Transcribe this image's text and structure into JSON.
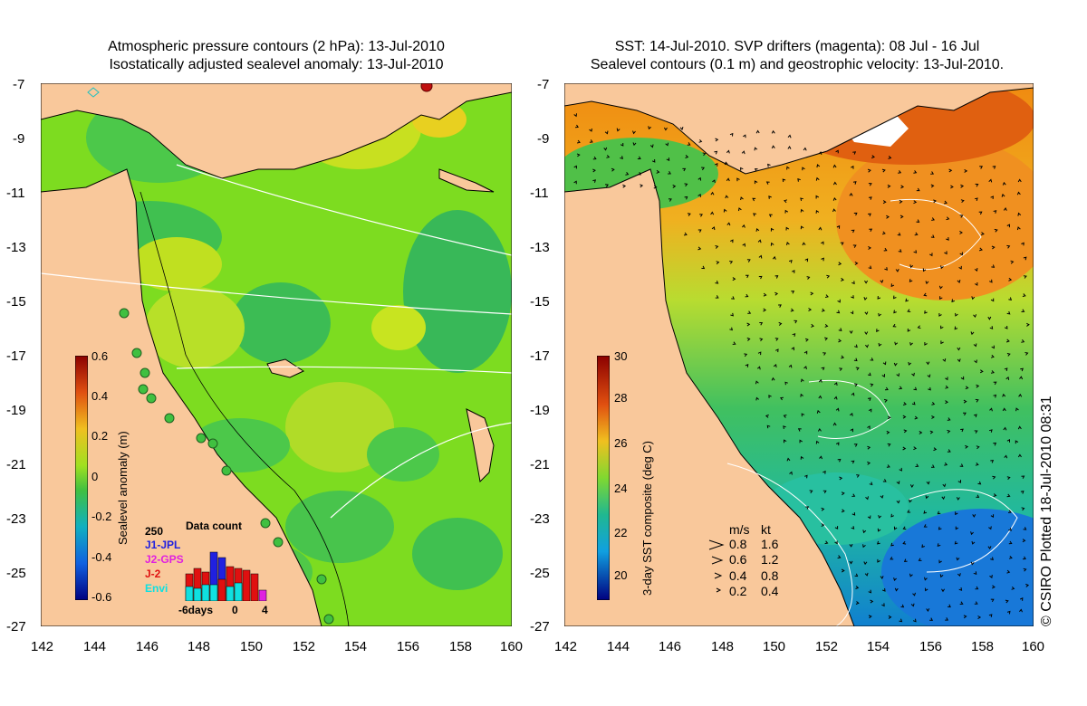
{
  "left_panel": {
    "title_line1": "Atmospheric pressure contours (2 hPa): 13-Jul-2010",
    "title_line2": "Isostatically adjusted sealevel anomaly: 13-Jul-2010",
    "colorbar_label": "Sealevel anomaly (m)",
    "colorbar_ticks": [
      "0.6",
      "0.4",
      "0.2",
      "0",
      "-0.2",
      "-0.4",
      "-0.6"
    ],
    "data_count": {
      "count_top": "250",
      "title": "Data count",
      "series": [
        {
          "name": "J1-JPL",
          "color": "#2020e0"
        },
        {
          "name": "J2-GPS",
          "color": "#e020e0"
        },
        {
          "name": "J-2",
          "color": "#e01010"
        },
        {
          "name": "Envi",
          "color": "#10e0e0"
        }
      ],
      "x_labels": [
        "-6days",
        "0",
        "4"
      ]
    }
  },
  "right_panel": {
    "title_line1": "SST: 14-Jul-2010. SVP drifters (magenta): 08 Jul - 16 Jul",
    "title_line2": "Sealevel contours (0.1 m) and geostrophic velocity: 13-Jul-2010.",
    "colorbar_label": "3-day SST composite (deg C)",
    "colorbar_ticks": [
      "30",
      "28",
      "26",
      "24",
      "22",
      "20"
    ],
    "speed_legend": {
      "header_ms": "m/s",
      "header_kt": "kt",
      "rows": [
        {
          "ms": "0.8",
          "kt": "1.6"
        },
        {
          "ms": "0.6",
          "kt": "1.2"
        },
        {
          "ms": "0.4",
          "kt": "0.8"
        },
        {
          "ms": "0.2",
          "kt": "0.4"
        }
      ]
    }
  },
  "axes": {
    "lat_labels": [
      "-7",
      "-9",
      "-11",
      "-13",
      "-15",
      "-17",
      "-19",
      "-21",
      "-23",
      "-25",
      "-27"
    ],
    "lon_labels": [
      "142",
      "144",
      "146",
      "148",
      "150",
      "152",
      "154",
      "156",
      "158",
      "160"
    ]
  },
  "credit": "© CSIRO Plotted 18-Jul-2010 08:31",
  "colors": {
    "land": "#f9c89b",
    "sla_mid": "#7ddc20",
    "sst_warm": "#f08a10",
    "sst_cool": "#30c060"
  }
}
